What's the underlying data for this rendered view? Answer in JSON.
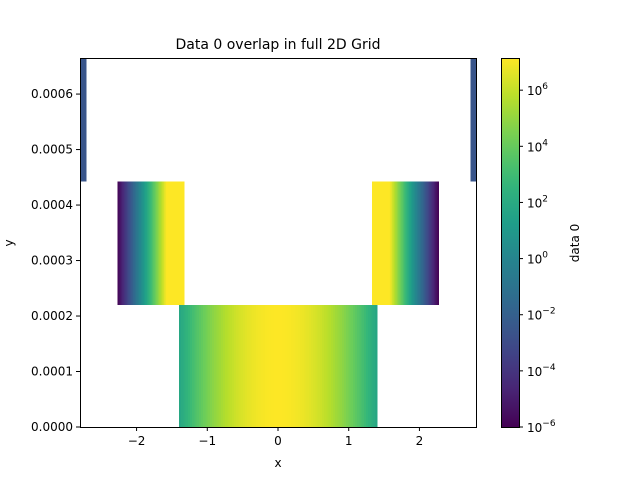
{
  "chart_data": {
    "type": "heatmap",
    "title": "Data 0 overlap in full 2D Grid",
    "xlabel": "x",
    "ylabel": "y",
    "xlim": [
      -2.8,
      2.8
    ],
    "ylim": [
      0,
      0.000665
    ],
    "x_ticks": [
      -2,
      -1,
      0,
      1,
      2
    ],
    "x_tick_labels": [
      "−2",
      "−1",
      "0",
      "1",
      "2"
    ],
    "y_ticks": [
      0,
      0.0001,
      0.0002,
      0.0003,
      0.0004,
      0.0005,
      0.0006
    ],
    "y_tick_labels": [
      "0.0000",
      "0.0001",
      "0.0002",
      "0.0003",
      "0.0004",
      "0.0005",
      "0.0006"
    ],
    "colormap": "viridis",
    "color_scale": "log",
    "colorbar": {
      "label": "data 0",
      "vmin": 1e-06,
      "vmax": 14000000.0,
      "ticks": [
        {
          "value": 1e-06,
          "base": "10",
          "exp": "−6"
        },
        {
          "value": 0.0001,
          "base": "10",
          "exp": "−4"
        },
        {
          "value": 0.01,
          "base": "10",
          "exp": "−2"
        },
        {
          "value": 1,
          "base": "10",
          "exp": "0"
        },
        {
          "value": 100.0,
          "base": "10",
          "exp": "2"
        },
        {
          "value": 10000.0,
          "base": "10",
          "exp": "4"
        },
        {
          "value": 1000000.0,
          "base": "10",
          "exp": "6"
        }
      ]
    },
    "blocks": [
      {
        "x0": -1.4,
        "x1": 1.4,
        "y0": 0,
        "y1": 0.00022,
        "profile": "gauss",
        "sigma": 0.28,
        "peak": 14000000.0
      },
      {
        "x0": -2.27,
        "x1": -1.33,
        "y0": 0.00022,
        "y1": 0.000442,
        "profile": "left-rise"
      },
      {
        "x0": 1.33,
        "x1": 2.27,
        "y0": 0.00022,
        "y1": 0.000442,
        "profile": "right-fall"
      },
      {
        "x0": -2.8,
        "x1": -2.72,
        "y0": 0.000442,
        "y1": 0.000665,
        "profile": "const",
        "value": 0.003
      },
      {
        "x0": 2.72,
        "x1": 2.8,
        "y0": 0.000442,
        "y1": 0.000665,
        "profile": "const",
        "value": 0.003
      }
    ]
  }
}
